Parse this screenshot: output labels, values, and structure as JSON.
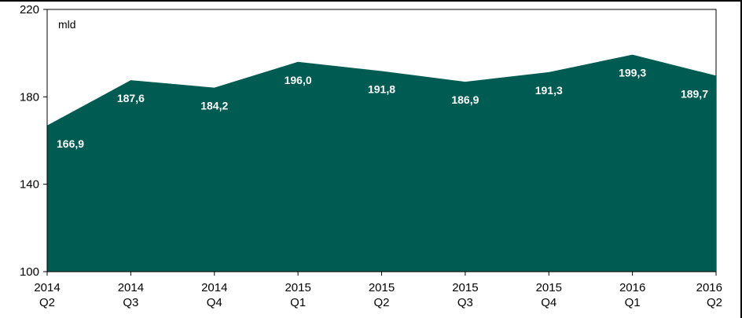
{
  "chart_data": {
    "type": "area",
    "categories": [
      [
        "2014",
        "Q2"
      ],
      [
        "2014",
        "Q3"
      ],
      [
        "2014",
        "Q4"
      ],
      [
        "2015",
        "Q1"
      ],
      [
        "2015",
        "Q2"
      ],
      [
        "2015",
        "Q3"
      ],
      [
        "2015",
        "Q4"
      ],
      [
        "2016",
        "Q1"
      ],
      [
        "2016",
        "Q2"
      ]
    ],
    "series": [
      {
        "values": [
          166.9,
          187.6,
          184.2,
          196.0,
          191.8,
          186.9,
          191.3,
          199.3,
          189.7
        ],
        "color": "#005b52"
      }
    ],
    "data_labels": [
      "166,9",
      "187,6",
      "184,2",
      "196,0",
      "191,8",
      "186,9",
      "191,3",
      "199,3",
      "189,7"
    ],
    "unit_label": "mld",
    "ylim": [
      100,
      220
    ],
    "yticks": [
      100,
      140,
      180,
      220
    ],
    "ytick_labels": [
      "100",
      "140",
      "180",
      "220"
    ],
    "grid": false,
    "legend": "none"
  }
}
